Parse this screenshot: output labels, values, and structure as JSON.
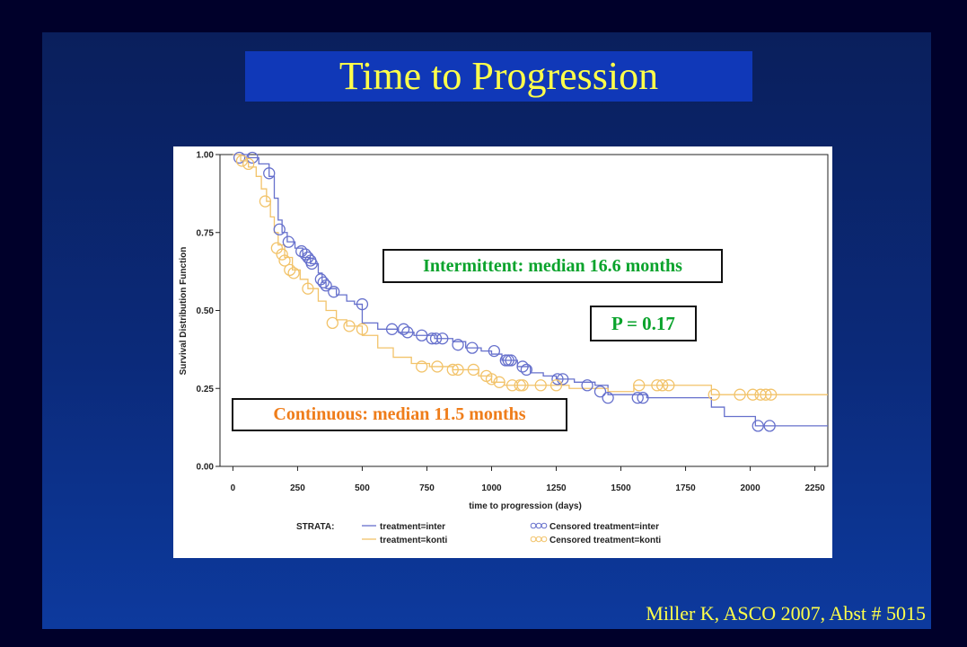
{
  "slide": {
    "title": "Time to Progression",
    "citation": "Miller K,  ASCO 2007, Abst # 5015"
  },
  "annotations": {
    "intermittent": "Intermittent: median 16.6 months",
    "pvalue": "P = 0.17",
    "continuous": "Continuous: median 11.5 months"
  },
  "colors": {
    "title_text": "#ffff4a",
    "inter": "#6670cc",
    "konti": "#f2c36a",
    "green_text": "#0aa32c",
    "orange_text": "#ef7d1a"
  },
  "chart_data": {
    "type": "line",
    "title": "",
    "xlabel": "time to progression (days)",
    "ylabel": "Survival Distribution Function",
    "xlim": [
      -50,
      2300
    ],
    "ylim": [
      0,
      1
    ],
    "x_ticks": [
      0,
      250,
      500,
      750,
      1000,
      1250,
      1500,
      1750,
      2000,
      2250
    ],
    "y_ticks": [
      0,
      0.25,
      0.5,
      0.75,
      1.0
    ],
    "y_tick_labels": [
      "0.00",
      "0.25",
      "0.50",
      "0.75",
      "1.00"
    ],
    "legend": {
      "strata_label": "STRATA:",
      "placement": "bottom",
      "entries": [
        {
          "label": "treatment=inter",
          "series": "inter",
          "kind": "line"
        },
        {
          "label": "Censored treatment=inter",
          "series": "inter",
          "kind": "censor"
        },
        {
          "label": "treatment=konti",
          "series": "konti",
          "kind": "line"
        },
        {
          "label": "Censored treatment=konti",
          "series": "konti",
          "kind": "censor"
        }
      ]
    },
    "series": [
      {
        "name": "treatment=inter",
        "key": "inter",
        "step": [
          [
            0,
            1.0
          ],
          [
            60,
            0.99
          ],
          [
            100,
            0.97
          ],
          [
            140,
            0.93
          ],
          [
            160,
            0.86
          ],
          [
            175,
            0.79
          ],
          [
            190,
            0.75
          ],
          [
            210,
            0.72
          ],
          [
            240,
            0.7
          ],
          [
            270,
            0.67
          ],
          [
            300,
            0.65
          ],
          [
            330,
            0.62
          ],
          [
            345,
            0.59
          ],
          [
            360,
            0.57
          ],
          [
            400,
            0.55
          ],
          [
            440,
            0.53
          ],
          [
            470,
            0.52
          ],
          [
            500,
            0.46
          ],
          [
            560,
            0.44
          ],
          [
            640,
            0.43
          ],
          [
            700,
            0.42
          ],
          [
            780,
            0.41
          ],
          [
            850,
            0.4
          ],
          [
            900,
            0.38
          ],
          [
            960,
            0.37
          ],
          [
            1000,
            0.36
          ],
          [
            1040,
            0.34
          ],
          [
            1100,
            0.32
          ],
          [
            1150,
            0.3
          ],
          [
            1200,
            0.29
          ],
          [
            1250,
            0.28
          ],
          [
            1320,
            0.27
          ],
          [
            1400,
            0.26
          ],
          [
            1450,
            0.23
          ],
          [
            1600,
            0.22
          ],
          [
            1850,
            0.19
          ],
          [
            1900,
            0.16
          ],
          [
            2020,
            0.13
          ],
          [
            2300,
            0.13
          ]
        ],
        "censored": [
          [
            25,
            0.99
          ],
          [
            75,
            0.99
          ],
          [
            140,
            0.94
          ],
          [
            180,
            0.76
          ],
          [
            215,
            0.72
          ],
          [
            265,
            0.69
          ],
          [
            280,
            0.68
          ],
          [
            290,
            0.67
          ],
          [
            300,
            0.66
          ],
          [
            305,
            0.65
          ],
          [
            340,
            0.6
          ],
          [
            350,
            0.59
          ],
          [
            360,
            0.58
          ],
          [
            390,
            0.56
          ],
          [
            500,
            0.52
          ],
          [
            615,
            0.44
          ],
          [
            660,
            0.44
          ],
          [
            675,
            0.43
          ],
          [
            730,
            0.42
          ],
          [
            770,
            0.41
          ],
          [
            785,
            0.41
          ],
          [
            810,
            0.41
          ],
          [
            870,
            0.39
          ],
          [
            925,
            0.38
          ],
          [
            1010,
            0.37
          ],
          [
            1055,
            0.34
          ],
          [
            1065,
            0.34
          ],
          [
            1075,
            0.34
          ],
          [
            1120,
            0.32
          ],
          [
            1135,
            0.31
          ],
          [
            1255,
            0.28
          ],
          [
            1275,
            0.28
          ],
          [
            1370,
            0.26
          ],
          [
            1420,
            0.24
          ],
          [
            1450,
            0.22
          ],
          [
            1565,
            0.22
          ],
          [
            1585,
            0.22
          ],
          [
            2030,
            0.13
          ],
          [
            2075,
            0.13
          ]
        ]
      },
      {
        "name": "treatment=konti",
        "key": "konti",
        "step": [
          [
            0,
            1.0
          ],
          [
            30,
            0.98
          ],
          [
            60,
            0.96
          ],
          [
            90,
            0.93
          ],
          [
            110,
            0.89
          ],
          [
            130,
            0.85
          ],
          [
            145,
            0.8
          ],
          [
            160,
            0.75
          ],
          [
            175,
            0.71
          ],
          [
            200,
            0.67
          ],
          [
            230,
            0.63
          ],
          [
            260,
            0.6
          ],
          [
            290,
            0.57
          ],
          [
            330,
            0.53
          ],
          [
            360,
            0.5
          ],
          [
            400,
            0.47
          ],
          [
            440,
            0.45
          ],
          [
            500,
            0.42
          ],
          [
            560,
            0.38
          ],
          [
            620,
            0.35
          ],
          [
            690,
            0.33
          ],
          [
            760,
            0.32
          ],
          [
            850,
            0.31
          ],
          [
            950,
            0.29
          ],
          [
            1000,
            0.27
          ],
          [
            1050,
            0.26
          ],
          [
            1200,
            0.26
          ],
          [
            1300,
            0.25
          ],
          [
            1450,
            0.24
          ],
          [
            1550,
            0.26
          ],
          [
            1850,
            0.23
          ],
          [
            2300,
            0.23
          ]
        ],
        "censored": [
          [
            35,
            0.98
          ],
          [
            60,
            0.97
          ],
          [
            125,
            0.85
          ],
          [
            170,
            0.7
          ],
          [
            190,
            0.68
          ],
          [
            200,
            0.66
          ],
          [
            220,
            0.63
          ],
          [
            235,
            0.62
          ],
          [
            290,
            0.57
          ],
          [
            385,
            0.46
          ],
          [
            450,
            0.45
          ],
          [
            500,
            0.44
          ],
          [
            730,
            0.32
          ],
          [
            790,
            0.32
          ],
          [
            850,
            0.31
          ],
          [
            870,
            0.31
          ],
          [
            930,
            0.31
          ],
          [
            980,
            0.29
          ],
          [
            1000,
            0.28
          ],
          [
            1030,
            0.27
          ],
          [
            1080,
            0.26
          ],
          [
            1110,
            0.26
          ],
          [
            1120,
            0.26
          ],
          [
            1190,
            0.26
          ],
          [
            1250,
            0.26
          ],
          [
            1570,
            0.26
          ],
          [
            1640,
            0.26
          ],
          [
            1660,
            0.26
          ],
          [
            1685,
            0.26
          ],
          [
            1860,
            0.23
          ],
          [
            1960,
            0.23
          ],
          [
            2010,
            0.23
          ],
          [
            2040,
            0.23
          ],
          [
            2060,
            0.23
          ],
          [
            2080,
            0.23
          ]
        ]
      }
    ]
  }
}
